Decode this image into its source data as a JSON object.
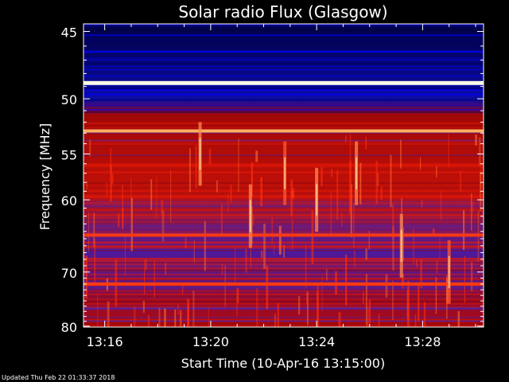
{
  "chart_data": {
    "type": "heatmap",
    "title": "Solar radio Flux (Glasgow)",
    "xlabel": "Start Time (10-Apr-16 13:15:00)",
    "ylabel": "Frequency [MHz]",
    "x_ticks": [
      "13:16",
      "13:20",
      "13:24",
      "13:28"
    ],
    "x_tick_minutes": [
      16,
      20,
      24,
      28
    ],
    "x_range_minutes": [
      15.2,
      30.3
    ],
    "y_ticks": [
      45,
      50,
      55,
      60,
      70,
      80
    ],
    "y_scale": "reciprocal",
    "y_range_mhz": [
      44.5,
      80.2
    ],
    "colormap": [
      "#00004a",
      "#1a1aff",
      "#2b2bc0",
      "#b01010",
      "#ff2a00",
      "#ffcc66",
      "#ffffff"
    ],
    "rfi_bands_mhz": [
      {
        "freq": 48.7,
        "level": "white"
      },
      {
        "freq": 52.8,
        "level": "orange"
      },
      {
        "freq": 64.5,
        "level": "bright-red"
      },
      {
        "freq": 72.0,
        "level": "bright-red"
      }
    ],
    "bursts": [
      {
        "minute": 19.6,
        "freq": 55.0,
        "level": "bright"
      },
      {
        "minute": 21.5,
        "freq": 62.0,
        "level": "bright"
      },
      {
        "minute": 22.8,
        "freq": 57.0,
        "level": "medium"
      },
      {
        "minute": 24.0,
        "freq": 60.0,
        "level": "bright"
      },
      {
        "minute": 25.5,
        "freq": 57.0,
        "level": "bright"
      },
      {
        "minute": 27.2,
        "freq": 66.0,
        "level": "bright"
      },
      {
        "minute": 29.0,
        "freq": 70.0,
        "level": "medium"
      }
    ]
  },
  "footer": {
    "updated": "Updated Thu Feb 22 01:33:37 2018"
  }
}
